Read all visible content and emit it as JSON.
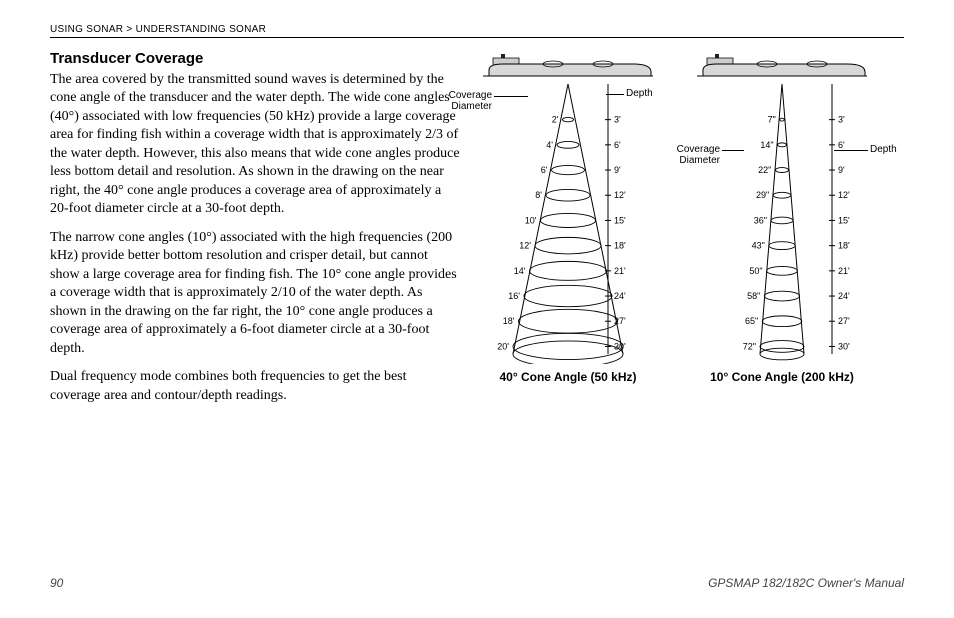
{
  "breadcrumb": {
    "part1": "Using Sonar",
    "sep": " > ",
    "part2": "Understanding Sonar"
  },
  "section_title": "Transducer Coverage",
  "paragraphs": [
    "The area covered by the transmitted sound waves is determined by the cone angle of the transducer and the water depth. The wide cone angles (40°) associated with low frequencies (50 kHz) provide a large coverage area for finding fish within a coverage width that is approximately 2/3 of the water depth. However, this also means that wide cone angles produce less bottom detail and resolution. As shown in the drawing on the near right, the 40° cone angle produces a coverage area of approximately a 20-foot diameter circle at a 30-foot depth.",
    "The narrow cone angles (10°) associated with the high frequencies (200 kHz) provide better bottom resolution and crisper detail, but cannot show a large coverage area for finding fish. The 10° cone angle provides a coverage width that is approximately 2/10 of the water depth. As shown in the drawing on the far right, the 10° cone angle produces a coverage area of approximately a 6-foot diameter circle at a 30-foot depth.",
    "Dual frequency mode combines both frequencies to get the best coverage area and contour/depth readings."
  ],
  "figure": {
    "label_coverage": "Coverage\nDiameter",
    "label_depth": "Depth",
    "cone40": {
      "caption": "40° Cone Angle (50 kHz)",
      "rows": [
        {
          "cov": "2'",
          "depth": "3'"
        },
        {
          "cov": "4'",
          "depth": "6'"
        },
        {
          "cov": "6'",
          "depth": "9'"
        },
        {
          "cov": "8'",
          "depth": "12'"
        },
        {
          "cov": "10'",
          "depth": "15'"
        },
        {
          "cov": "12'",
          "depth": "18'"
        },
        {
          "cov": "14'",
          "depth": "21'"
        },
        {
          "cov": "16'",
          "depth": "24'"
        },
        {
          "cov": "18'",
          "depth": "27'"
        },
        {
          "cov": "20'",
          "depth": "30'"
        }
      ]
    },
    "cone10": {
      "caption": "10° Cone Angle (200 kHz)",
      "rows": [
        {
          "cov": "7\"",
          "depth": "3'"
        },
        {
          "cov": "14\"",
          "depth": "6'"
        },
        {
          "cov": "22\"",
          "depth": "9'"
        },
        {
          "cov": "29\"",
          "depth": "12'"
        },
        {
          "cov": "36\"",
          "depth": "15'"
        },
        {
          "cov": "43\"",
          "depth": "18'"
        },
        {
          "cov": "50\"",
          "depth": "21'"
        },
        {
          "cov": "58\"",
          "depth": "24'"
        },
        {
          "cov": "65\"",
          "depth": "27'"
        },
        {
          "cov": "72\"",
          "depth": "30'"
        }
      ]
    }
  },
  "footer": {
    "page": "90",
    "manual": "GPSMAP 182/182C Owner's Manual"
  },
  "style": {
    "boat_stroke": "#000000",
    "boat_fill": "#d8d8d8",
    "cone_stroke": "#000000",
    "tick_font": 9
  }
}
